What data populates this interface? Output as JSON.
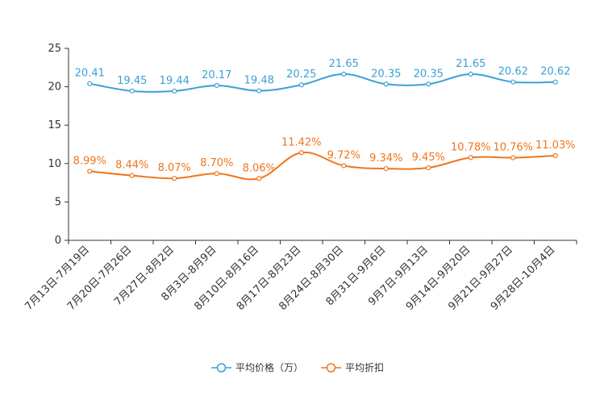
{
  "chart_data": {
    "type": "line",
    "title": "",
    "xlabel": "",
    "ylabel": "",
    "ylim": [
      0,
      25
    ],
    "yticks": [
      0,
      5,
      10,
      15,
      20,
      25
    ],
    "grid": false,
    "legend_position": "bottom-center",
    "categories": [
      "7月13日-7月19日",
      "7月20日-7月26日",
      "7月27日-8月2日",
      "8月3日-8月9日",
      "8月10日-8月16日",
      "8月17日-8月23日",
      "8月24日-8月30日",
      "8月31日-9月6日",
      "9月7日-9月13日",
      "9月14日-9月20日",
      "9月21日-9月27日",
      "9月28日-10月4日"
    ],
    "series": [
      {
        "name": "平均价格（万）",
        "color": "#3ba1d6",
        "values": [
          20.41,
          19.45,
          19.44,
          20.17,
          19.48,
          20.25,
          21.65,
          20.35,
          20.35,
          21.65,
          20.62,
          20.62
        ],
        "labels": [
          "20.41",
          "19.45",
          "19.44",
          "20.17",
          "19.48",
          "20.25",
          "21.65",
          "20.35",
          "20.35",
          "21.65",
          "20.62",
          "20.62"
        ]
      },
      {
        "name": "平均折扣",
        "color": "#f0751c",
        "values": [
          8.99,
          8.44,
          8.07,
          8.7,
          8.06,
          11.42,
          9.72,
          9.34,
          9.45,
          10.78,
          10.76,
          11.03
        ],
        "labels": [
          "8.99%",
          "8.44%",
          "8.07%",
          "8.70%",
          "8.06%",
          "11.42%",
          "9.72%",
          "9.34%",
          "9.45%",
          "10.78%",
          "10.76%",
          "11.03%"
        ]
      }
    ]
  }
}
